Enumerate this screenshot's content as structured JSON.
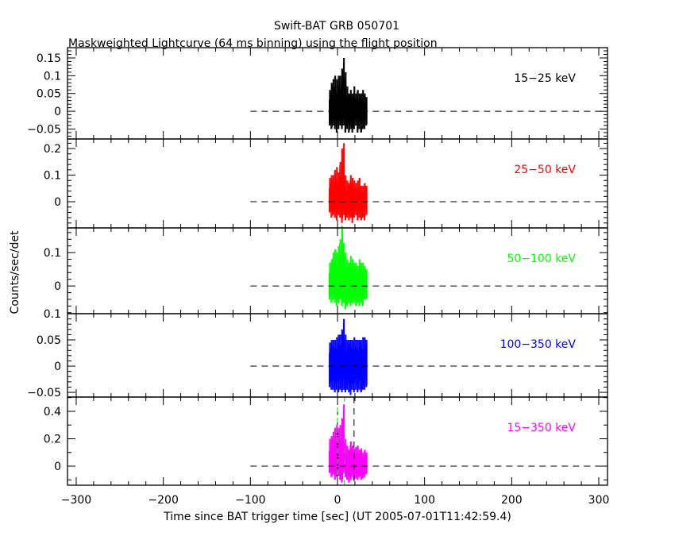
{
  "chart_data": {
    "type": "line",
    "title": "Swift-BAT GRB 050701",
    "subtitle": "Maskweighted Lightcurve (64 ms binning) using the flight position",
    "xlabel": "Time since BAT trigger time [sec] (UT 2005-07-01T11:42:59.4)",
    "ylabel": "Counts/sec/det",
    "xlim": [
      -310,
      310
    ],
    "xticks": [
      -300,
      -200,
      -100,
      0,
      100,
      200,
      300
    ],
    "xtick_labels": [
      "−300",
      "−200",
      "−100",
      "0",
      "100",
      "200",
      "300"
    ],
    "baseline_from": -100,
    "time_bins": [
      -10,
      -8,
      -6,
      -4,
      -2,
      0,
      2,
      4,
      6,
      8,
      10,
      12,
      14,
      16,
      18,
      20,
      22,
      24,
      26,
      28,
      30,
      32
    ],
    "panels": [
      {
        "name": "15−25 keV",
        "color": "#000000",
        "ylim": [
          -0.078,
          0.179
        ],
        "major": 0.05,
        "minor": 0.01,
        "yticks": [
          -0.05,
          0,
          0.05,
          0.1,
          0.15
        ],
        "ytick_labels": [
          "−0.05",
          "0",
          "0.05",
          "0.1",
          "0.15"
        ],
        "high": [
          0.06,
          0.08,
          0.09,
          0.1,
          0.09,
          0.1,
          0.1,
          0.12,
          0.15,
          0.11,
          0.07,
          0.05,
          0.06,
          0.05,
          0.07,
          0.05,
          0.06,
          0.05,
          0.05,
          0.06,
          0.05,
          0.04
        ],
        "low": [
          -0.04,
          -0.05,
          -0.04,
          -0.05,
          -0.06,
          -0.05,
          -0.04,
          -0.05,
          -0.04,
          -0.06,
          -0.05,
          -0.06,
          -0.05,
          -0.06,
          -0.05,
          -0.04,
          -0.06,
          -0.05,
          -0.06,
          -0.05,
          -0.05,
          -0.04
        ]
      },
      {
        "name": "25−50 keV",
        "color": "#ff0000",
        "ylim": [
          -0.0985,
          0.236
        ],
        "major": 0.1,
        "minor": 0.02,
        "yticks": [
          0,
          0.1,
          0.2
        ],
        "ytick_labels": [
          "0",
          "0.1",
          "0.2"
        ],
        "high": [
          0.09,
          0.1,
          0.1,
          0.12,
          0.13,
          0.11,
          0.15,
          0.2,
          0.22,
          0.1,
          0.08,
          0.07,
          0.1,
          0.09,
          0.08,
          0.07,
          0.08,
          0.09,
          0.06,
          0.06,
          0.07,
          0.06
        ],
        "low": [
          -0.04,
          -0.06,
          -0.05,
          -0.06,
          -0.07,
          -0.05,
          -0.06,
          -0.08,
          -0.05,
          -0.07,
          -0.06,
          -0.07,
          -0.06,
          -0.08,
          -0.06,
          -0.05,
          -0.07,
          -0.06,
          -0.07,
          -0.06,
          -0.07,
          -0.05
        ]
      },
      {
        "name": "50−100 keV",
        "color": "#00ff00",
        "ylim": [
          -0.083,
          0.174
        ],
        "major": 0.1,
        "minor": 0.02,
        "yticks": [
          0,
          0.1
        ],
        "ytick_labels": [
          "0",
          "0.1"
        ],
        "high": [
          0.07,
          0.08,
          0.1,
          0.11,
          0.1,
          0.12,
          0.14,
          0.18,
          0.13,
          0.1,
          0.08,
          0.07,
          0.09,
          0.08,
          0.07,
          0.07,
          0.06,
          0.08,
          0.07,
          0.07,
          0.06,
          0.05
        ],
        "low": [
          -0.04,
          -0.05,
          -0.04,
          -0.05,
          -0.06,
          -0.05,
          -0.04,
          -0.06,
          -0.05,
          -0.07,
          -0.06,
          -0.05,
          -0.06,
          -0.05,
          -0.05,
          -0.06,
          -0.05,
          -0.06,
          -0.05,
          -0.06,
          -0.04,
          -0.04
        ]
      },
      {
        "name": "100−350 keV",
        "color": "#0000ff",
        "ylim": [
          -0.059,
          0.1
        ],
        "major": 0.05,
        "minor": 0.01,
        "yticks": [
          -0.05,
          0,
          0.05,
          0.1
        ],
        "ytick_labels": [
          "−0.05",
          "0",
          "0.05",
          "0.1"
        ],
        "high": [
          0.045,
          0.05,
          0.05,
          0.05,
          0.055,
          0.06,
          0.06,
          0.07,
          0.09,
          0.06,
          0.05,
          0.05,
          0.05,
          0.05,
          0.055,
          0.05,
          0.05,
          0.05,
          0.05,
          0.055,
          0.055,
          0.05
        ],
        "low": [
          -0.04,
          -0.045,
          -0.045,
          -0.05,
          -0.045,
          -0.05,
          -0.045,
          -0.05,
          -0.045,
          -0.05,
          -0.045,
          -0.05,
          -0.055,
          -0.045,
          -0.05,
          -0.045,
          -0.05,
          -0.045,
          -0.05,
          -0.045,
          -0.045,
          -0.04
        ]
      },
      {
        "name": "15−350 keV",
        "color": "#ff00ff",
        "ylim": [
          -0.139,
          0.504
        ],
        "major": 0.2,
        "minor": 0.1,
        "yticks": [
          0,
          0.2,
          0.4
        ],
        "ytick_labels": [
          "0",
          "0.2",
          "0.4"
        ],
        "high": [
          0.2,
          0.22,
          0.25,
          0.28,
          0.3,
          0.28,
          0.3,
          0.35,
          0.45,
          0.2,
          0.15,
          0.12,
          0.18,
          0.15,
          0.13,
          0.14,
          0.15,
          0.12,
          0.13,
          0.1,
          0.12,
          0.1
        ],
        "low": [
          -0.05,
          -0.08,
          -0.06,
          -0.1,
          -0.08,
          -0.07,
          -0.1,
          -0.12,
          -0.05,
          -0.08,
          -0.1,
          -0.12,
          -0.1,
          -0.08,
          -0.1,
          -0.09,
          -0.1,
          -0.08,
          -0.1,
          -0.09,
          -0.08,
          -0.06
        ],
        "markers_black": [
          0,
          19
        ],
        "markers_green": [
          0,
          8
        ]
      }
    ]
  }
}
